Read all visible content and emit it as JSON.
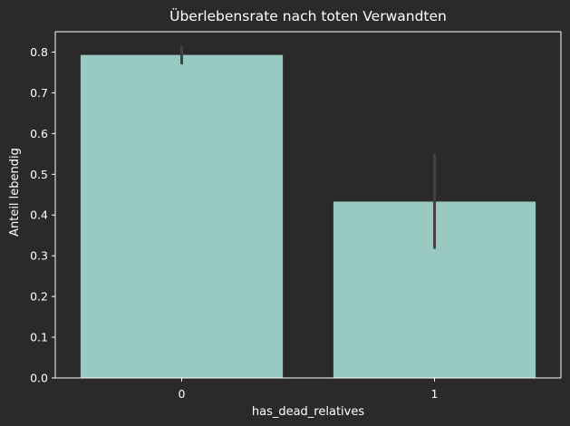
{
  "chart_data": {
    "type": "bar",
    "title": "Überlebensrate nach toten Verwandten",
    "xlabel": "has_dead_relatives",
    "ylabel": "Anteil lebendig",
    "categories": [
      "0",
      "1"
    ],
    "values": [
      0.793,
      0.433
    ],
    "error_bars": [
      {
        "low": 0.77,
        "high": 0.815
      },
      {
        "low": 0.317,
        "high": 0.55
      }
    ],
    "ylim": [
      0,
      0.85
    ],
    "yticks": [
      "0.0",
      "0.1",
      "0.2",
      "0.3",
      "0.4",
      "0.5",
      "0.6",
      "0.7",
      "0.8"
    ],
    "grid": false,
    "colors": {
      "background": "#2b292a",
      "bar": "#99cac1",
      "error_bar": "#424242",
      "axis": "#ffffff",
      "text": "#ffffff"
    }
  }
}
